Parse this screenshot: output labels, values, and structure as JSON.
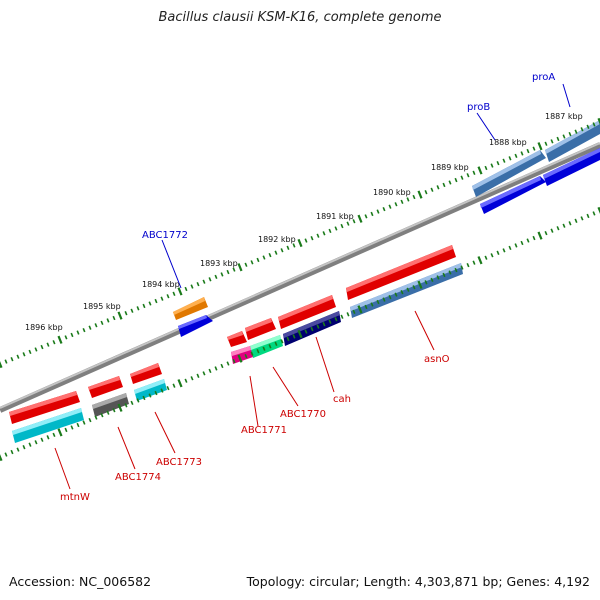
{
  "title": "Bacillus clausii KSM-K16, complete genome",
  "footer": {
    "accession": "Accession: NC_006582",
    "topology": "Topology: circular; Length: 4,303,871 bp; Genes: 4,192"
  },
  "colors": {
    "forward_label": "#0000cc",
    "reverse_label": "#cc0000",
    "tick": "#1a7a1a",
    "backbone": "#808080"
  },
  "kbp_labels": [
    "1896 kbp",
    "1895 kbp",
    "1894 kbp",
    "1893 kbp",
    "1892 kbp",
    "1891 kbp",
    "1890 kbp",
    "1889 kbp",
    "1888 kbp",
    "1887 kbp"
  ],
  "genes": [
    {
      "label": "proA",
      "strand": "forward"
    },
    {
      "label": "proB",
      "strand": "forward"
    },
    {
      "label": "ABC1772",
      "strand": "forward"
    },
    {
      "label": "asnO",
      "strand": "reverse"
    },
    {
      "label": "cah",
      "strand": "reverse"
    },
    {
      "label": "ABC1770",
      "strand": "reverse"
    },
    {
      "label": "ABC1771",
      "strand": "reverse"
    },
    {
      "label": "ABC1773",
      "strand": "reverse"
    },
    {
      "label": "ABC1774",
      "strand": "reverse"
    },
    {
      "label": "mtnW",
      "strand": "reverse"
    }
  ]
}
